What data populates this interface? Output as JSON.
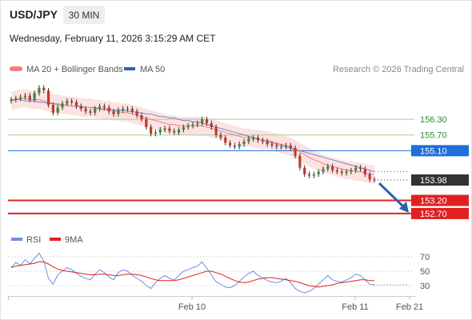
{
  "header": {
    "symbol": "USD/JPY",
    "timeframe": "30 MIN",
    "datetime": "Wednesday, February 11, 2026 3:15:29 AM CET"
  },
  "legend": {
    "ma20_label": "MA 20 + Bollinger Bands",
    "ma50_label": "MA 50",
    "copyright": "Research © 2026 Trading Central",
    "rsi_label": "RSI",
    "rsi_ma_label": "9MA"
  },
  "colors": {
    "up_candle": "#3a8a3a",
    "down_candle": "#c0392b",
    "ma20": "#f08080",
    "bollinger_fill": "#fde2e2",
    "ma50": "#6f86c9",
    "resistance_green": "#9fd18f",
    "pivot_blue": "#1e6fd9",
    "support_red": "#e02020",
    "price_tag": "#333333",
    "arrow": "#2e5fa8",
    "rsi": "#6d8fe0",
    "rsi_ma": "#e02020"
  },
  "chart_data": [
    {
      "type": "candlestick",
      "title": "USD/JPY 30 MIN",
      "y_range": [
        152.3,
        157.8
      ],
      "x_labels": [
        "Feb 10",
        "Feb 11",
        "Feb 21"
      ],
      "last_price": 153.98,
      "levels": [
        {
          "value": 156.3,
          "label": "156.30",
          "kind": "resistance"
        },
        {
          "value": 155.7,
          "label": "155.70",
          "kind": "resistance"
        },
        {
          "value": 155.1,
          "label": "155.10",
          "kind": "pivot"
        },
        {
          "value": 153.2,
          "label": "153.20",
          "kind": "support"
        },
        {
          "value": 152.7,
          "label": "152.70",
          "kind": "support"
        }
      ],
      "forecast_arrow": {
        "from": 153.98,
        "to": 152.7
      },
      "closes": [
        157.05,
        157.1,
        157.15,
        157.2,
        157.05,
        157.3,
        157.5,
        157.4,
        156.85,
        156.55,
        156.75,
        156.9,
        157.0,
        156.95,
        156.8,
        156.7,
        156.6,
        156.55,
        156.7,
        156.8,
        156.75,
        156.6,
        156.5,
        156.65,
        156.7,
        156.7,
        156.6,
        156.45,
        156.3,
        156.0,
        155.75,
        155.8,
        155.9,
        155.95,
        155.85,
        155.8,
        155.9,
        156.0,
        156.05,
        156.1,
        156.15,
        156.3,
        156.15,
        156.0,
        155.7,
        155.6,
        155.4,
        155.3,
        155.25,
        155.35,
        155.45,
        155.55,
        155.6,
        155.5,
        155.45,
        155.35,
        155.3,
        155.25,
        155.25,
        155.3,
        155.2,
        154.9,
        154.45,
        154.2,
        154.15,
        154.2,
        154.3,
        154.4,
        154.5,
        154.35,
        154.3,
        154.25,
        154.3,
        154.35,
        154.45,
        154.4,
        154.2,
        154.0,
        153.98
      ],
      "ma20": [
        157.0,
        157.05,
        157.1,
        157.1,
        157.05,
        157.05,
        157.05,
        157.0,
        156.95,
        156.9,
        156.9,
        156.85,
        156.85,
        156.8,
        156.8,
        156.75,
        156.75,
        156.75,
        156.7,
        156.7,
        156.65,
        156.65,
        156.6,
        156.6,
        156.55,
        156.55,
        156.5,
        156.45,
        156.4,
        156.35,
        156.3,
        156.25,
        156.2,
        156.15,
        156.1,
        156.1,
        156.05,
        156.05,
        156.05,
        156.05,
        156.05,
        156.05,
        156.0,
        155.95,
        155.9,
        155.85,
        155.8,
        155.75,
        155.7,
        155.65,
        155.6,
        155.6,
        155.55,
        155.55,
        155.5,
        155.5,
        155.45,
        155.4,
        155.35,
        155.3,
        155.25,
        155.15,
        155.05,
        154.95,
        154.85,
        154.75,
        154.7,
        154.6,
        154.55,
        154.5,
        154.45,
        154.4,
        154.35,
        154.35,
        154.3,
        154.3,
        154.25,
        154.2,
        154.2
      ],
      "ma50": [
        157.05,
        157.05,
        157.05,
        157.0,
        157.0,
        157.0,
        156.95,
        156.95,
        156.9,
        156.9,
        156.85,
        156.85,
        156.85,
        156.8,
        156.8,
        156.8,
        156.75,
        156.75,
        156.75,
        156.7,
        156.7,
        156.7,
        156.65,
        156.65,
        156.65,
        156.6,
        156.6,
        156.55,
        156.55,
        156.5,
        156.5,
        156.45,
        156.4,
        156.4,
        156.35,
        156.35,
        156.3,
        156.25,
        156.25,
        156.2,
        156.2,
        156.15,
        156.1,
        156.05,
        156.0,
        155.95,
        155.9,
        155.85,
        155.8,
        155.75,
        155.7,
        155.65,
        155.6,
        155.55,
        155.5,
        155.45,
        155.4,
        155.35,
        155.3,
        155.25,
        155.2,
        155.15,
        155.1,
        155.05,
        155.0,
        154.95,
        154.9,
        154.85,
        154.8,
        154.75,
        154.7,
        154.65,
        154.6,
        154.55,
        154.5,
        154.45,
        154.4,
        154.35,
        154.3
      ]
    },
    {
      "type": "line",
      "title": "RSI",
      "y_range": [
        20,
        80
      ],
      "y_ticks": [
        30,
        50,
        70
      ],
      "series": [
        {
          "name": "RSI",
          "values": [
            55,
            62,
            58,
            66,
            60,
            68,
            75,
            64,
            40,
            32,
            45,
            50,
            55,
            52,
            47,
            43,
            40,
            38,
            46,
            52,
            48,
            42,
            38,
            48,
            52,
            50,
            44,
            40,
            36,
            30,
            26,
            34,
            40,
            44,
            40,
            38,
            44,
            50,
            52,
            55,
            57,
            63,
            54,
            45,
            35,
            32,
            28,
            27,
            30,
            36,
            42,
            47,
            50,
            44,
            41,
            37,
            35,
            34,
            36,
            40,
            34,
            26,
            22,
            20,
            22,
            26,
            32,
            38,
            44,
            38,
            36,
            35,
            38,
            41,
            46,
            44,
            38,
            32,
            31
          ]
        },
        {
          "name": "9MA",
          "values": [
            55,
            57,
            58,
            59,
            60,
            61,
            63,
            63,
            60,
            56,
            53,
            51,
            50,
            49,
            48,
            47,
            46,
            45,
            45,
            46,
            46,
            45,
            44,
            44,
            45,
            46,
            46,
            45,
            44,
            42,
            40,
            38,
            37,
            37,
            37,
            37,
            38,
            40,
            42,
            44,
            46,
            48,
            50,
            50,
            48,
            46,
            43,
            40,
            37,
            35,
            34,
            35,
            37,
            39,
            40,
            41,
            41,
            40,
            39,
            38,
            37,
            36,
            34,
            32,
            30,
            29,
            28,
            29,
            30,
            31,
            33,
            34,
            35,
            36,
            37,
            38,
            38,
            37,
            37
          ]
        }
      ]
    }
  ]
}
